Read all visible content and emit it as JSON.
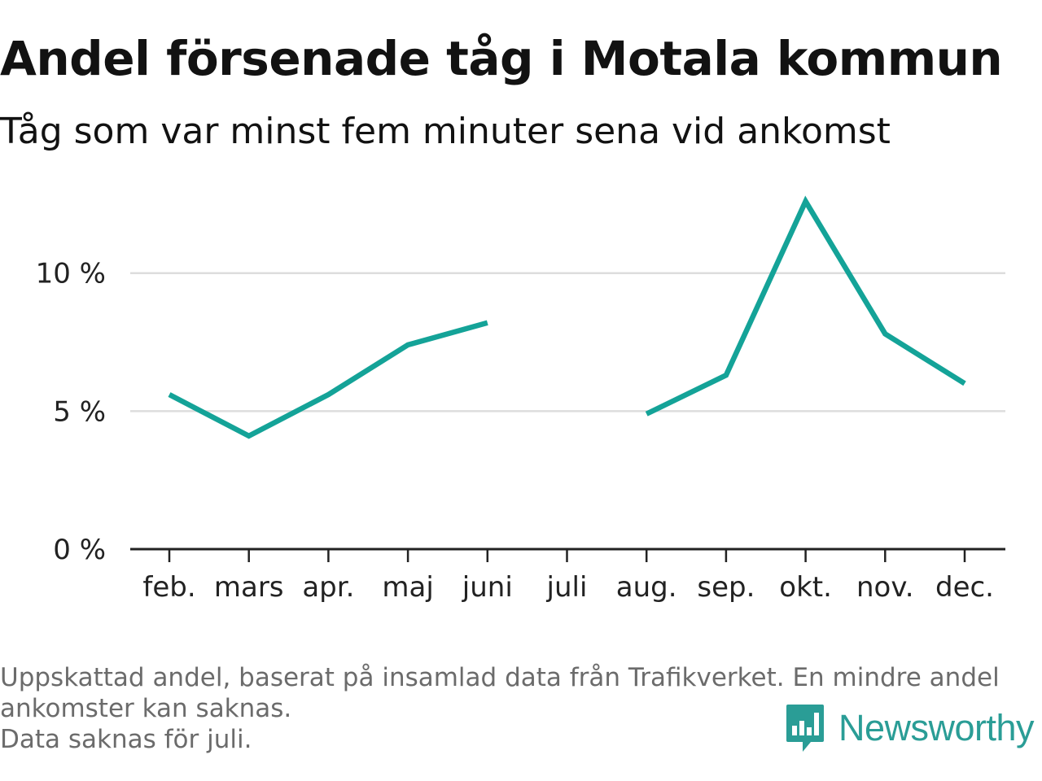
{
  "header": {
    "title": "Andel försenade tåg i Motala kommun",
    "subtitle": "Tåg som var minst fem minuter sena vid ankomst"
  },
  "chart_data": {
    "type": "line",
    "title": "Andel försenade tåg i Motala kommun",
    "subtitle": "Tåg som var minst fem minuter sena vid ankomst",
    "xlabel": "",
    "ylabel": "",
    "categories": [
      "feb.",
      "mars",
      "apr.",
      "maj",
      "juni",
      "juli",
      "aug.",
      "sep.",
      "okt.",
      "nov.",
      "dec."
    ],
    "series": [
      {
        "values": [
          5.6,
          4.1,
          5.6,
          7.4,
          8.2,
          null,
          4.9,
          6.3,
          12.6,
          7.8,
          6.0
        ],
        "color": "#14a398"
      }
    ],
    "yticks": [
      0,
      5,
      10
    ],
    "ytick_labels": [
      "0 %",
      "5 %",
      "10 %"
    ],
    "ylim": [
      0,
      14
    ],
    "grid": true,
    "legend": "none",
    "colors": {
      "line": "#14a398",
      "grid": "#dddddd",
      "axis": "#222222"
    }
  },
  "footer": {
    "note_line1": "Uppskattad andel, baserat på insamlad data från Trafikverket. En mindre andel",
    "note_line2": "ankomster kan saknas.",
    "note_line3": "Data saknas för juli.",
    "logo_text": "Newsworthy",
    "logo_icon": "bar-chart-speech-bubble-icon",
    "logo_color": "#2a9d96"
  }
}
